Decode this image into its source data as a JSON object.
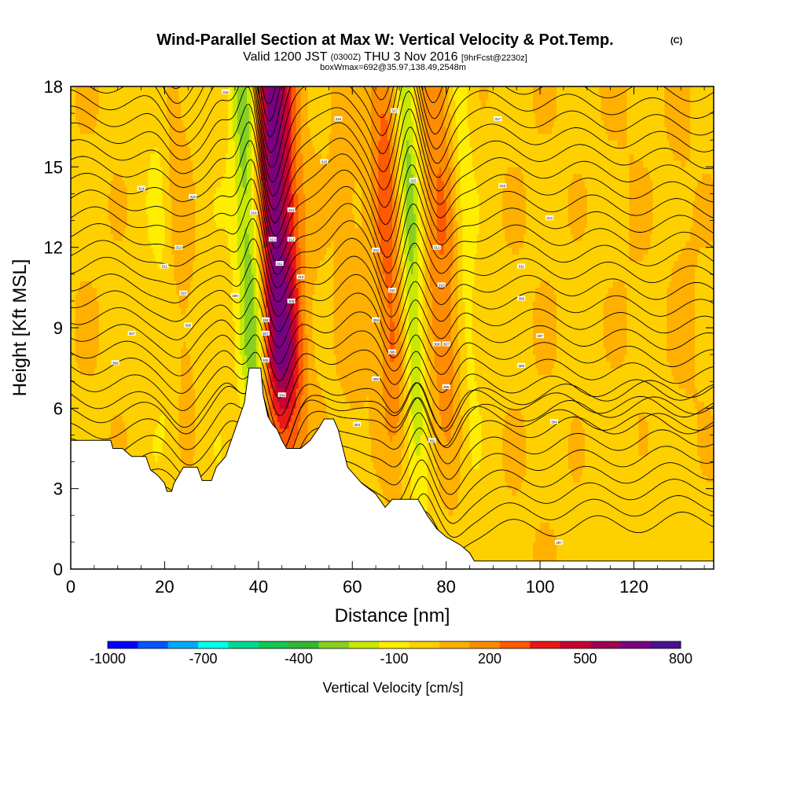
{
  "chart_data": {
    "type": "heatmap",
    "title": {
      "main": "Wind-Parallel Section at Max W: Vertical Velocity & Pot.Temp.",
      "copyright": "(C)",
      "valid_prefix": "Valid 1200 JST",
      "valid_utc": "(0300Z)",
      "valid_date": "THU 3 Nov 2016",
      "forecast": "[9hrFcst@2230z]",
      "box_info": "boxWmax=692@35.97,138.49,2548m"
    },
    "xlabel": "Distance [nm]",
    "ylabel": "Height [Kft MSL]",
    "xlim": [
      0,
      137
    ],
    "ylim": [
      0,
      18
    ],
    "x_ticks": [
      "0",
      "20",
      "40",
      "60",
      "80",
      "100",
      "120"
    ],
    "y_ticks": [
      "0",
      "3",
      "6",
      "9",
      "12",
      "15",
      "18"
    ],
    "colorbar": {
      "label": "Vertical Velocity [cm/s]",
      "tick_labels": [
        "-1000",
        "-700",
        "-400",
        "-100",
        "200",
        "500",
        "800"
      ],
      "colors": [
        "#0000ff",
        "#0055ff",
        "#00aaff",
        "#00ffee",
        "#00d890",
        "#16c850",
        "#30b830",
        "#88d020",
        "#c8e800",
        "#ffee00",
        "#ffd000",
        "#ffb000",
        "#ff8c00",
        "#ff5a00",
        "#e81818",
        "#c80030",
        "#a00050",
        "#7a0080",
        "#4a1090"
      ]
    },
    "terrain_kft": [
      [
        0,
        4.8
      ],
      [
        8.5,
        4.8
      ],
      [
        9,
        4.5
      ],
      [
        11,
        4.5
      ],
      [
        13,
        4.2
      ],
      [
        16,
        4.2
      ],
      [
        17,
        3.7
      ],
      [
        18.5,
        3.5
      ],
      [
        20,
        3.2
      ],
      [
        20.5,
        2.9
      ],
      [
        21.5,
        2.9
      ],
      [
        22,
        3.2
      ],
      [
        23,
        3.5
      ],
      [
        24,
        3.8
      ],
      [
        27,
        3.8
      ],
      [
        28,
        3.3
      ],
      [
        30,
        3.3
      ],
      [
        31,
        3.8
      ],
      [
        33,
        4.2
      ],
      [
        35,
        5.2
      ],
      [
        37,
        6.2
      ],
      [
        38,
        7.5
      ],
      [
        40.5,
        7.5
      ],
      [
        41,
        6.5
      ],
      [
        42,
        5.7
      ],
      [
        43,
        5.4
      ],
      [
        44,
        5.2
      ],
      [
        45,
        4.8
      ],
      [
        46,
        4.5
      ],
      [
        49,
        4.5
      ],
      [
        51,
        4.8
      ],
      [
        53,
        5.3
      ],
      [
        54,
        5.6
      ],
      [
        56,
        5.6
      ],
      [
        57,
        5.2
      ],
      [
        58,
        4.5
      ],
      [
        59,
        3.8
      ],
      [
        62,
        3.2
      ],
      [
        65,
        2.8
      ],
      [
        67,
        2.3
      ],
      [
        68.5,
        2.6
      ],
      [
        74,
        2.6
      ],
      [
        76,
        2.0
      ],
      [
        78,
        1.5
      ],
      [
        80,
        1.2
      ],
      [
        83,
        0.9
      ],
      [
        85,
        0.6
      ],
      [
        86,
        0.3
      ],
      [
        137,
        0.3
      ]
    ],
    "velocity_columns": [
      {
        "center_nm": 44.5,
        "half_width_nm": 4.5,
        "peak_cm_s": 692
      },
      {
        "center_nm": 68.5,
        "half_width_nm": 3.5,
        "peak_cm_s": 300
      },
      {
        "center_nm": 79.5,
        "half_width_nm": 4.5,
        "peak_cm_s": 250
      },
      {
        "center_nm": 39.0,
        "half_width_nm": 3.0,
        "peak_cm_s": -420
      },
      {
        "center_nm": 73.0,
        "half_width_nm": 2.5,
        "peak_cm_s": -330
      },
      {
        "center_nm": 84.5,
        "half_width_nm": 2.5,
        "peak_cm_s": -150
      },
      {
        "center_nm": 24.0,
        "half_width_nm": 3.5,
        "peak_cm_s": 110
      },
      {
        "center_nm": 20.0,
        "half_width_nm": 2.5,
        "peak_cm_s": -70
      },
      {
        "center_nm": 60.0,
        "half_width_nm": 3.0,
        "peak_cm_s": 80
      },
      {
        "center_nm": 120.0,
        "half_width_nm": 6.0,
        "peak_cm_s": 60
      },
      {
        "center_nm": 131.0,
        "half_width_nm": 4.0,
        "peak_cm_s": 70
      }
    ],
    "contour_labels": [
      {
        "x": 33,
        "y": 17.8,
        "text": "316"
      },
      {
        "x": 15,
        "y": 14.2,
        "text": "314"
      },
      {
        "x": 26,
        "y": 13.9,
        "text": "313"
      },
      {
        "x": 23,
        "y": 12.0,
        "text": "312"
      },
      {
        "x": 20,
        "y": 11.3,
        "text": "311"
      },
      {
        "x": 24,
        "y": 10.3,
        "text": "310"
      },
      {
        "x": 35,
        "y": 10.2,
        "text": "309"
      },
      {
        "x": 25,
        "y": 9.1,
        "text": "308"
      },
      {
        "x": 13,
        "y": 8.8,
        "text": "307"
      },
      {
        "x": 9.5,
        "y": 7.7,
        "text": "306"
      },
      {
        "x": 39,
        "y": 13.3,
        "text": "314"
      },
      {
        "x": 43,
        "y": 12.3,
        "text": "313"
      },
      {
        "x": 44.5,
        "y": 11.4,
        "text": "311"
      },
      {
        "x": 47,
        "y": 13.4,
        "text": "314"
      },
      {
        "x": 47,
        "y": 12.3,
        "text": "312"
      },
      {
        "x": 49,
        "y": 10.9,
        "text": "310"
      },
      {
        "x": 47,
        "y": 10.0,
        "text": "309"
      },
      {
        "x": 41.5,
        "y": 9.3,
        "text": "308"
      },
      {
        "x": 41.5,
        "y": 8.8,
        "text": "307"
      },
      {
        "x": 41.5,
        "y": 7.8,
        "text": "306"
      },
      {
        "x": 45,
        "y": 6.5,
        "text": "304"
      },
      {
        "x": 57,
        "y": 16.8,
        "text": "316"
      },
      {
        "x": 54,
        "y": 15.2,
        "text": "315"
      },
      {
        "x": 65,
        "y": 11.9,
        "text": "312"
      },
      {
        "x": 68.5,
        "y": 10.4,
        "text": "310"
      },
      {
        "x": 65,
        "y": 9.3,
        "text": "308"
      },
      {
        "x": 68.5,
        "y": 8.1,
        "text": "306"
      },
      {
        "x": 65,
        "y": 7.1,
        "text": "305"
      },
      {
        "x": 61,
        "y": 5.4,
        "text": "303"
      },
      {
        "x": 69,
        "y": 17.1,
        "text": "317"
      },
      {
        "x": 73,
        "y": 14.5,
        "text": "315"
      },
      {
        "x": 78,
        "y": 12.0,
        "text": "312"
      },
      {
        "x": 79,
        "y": 10.6,
        "text": "310"
      },
      {
        "x": 78,
        "y": 8.4,
        "text": "308"
      },
      {
        "x": 80,
        "y": 8.4,
        "text": "307"
      },
      {
        "x": 80,
        "y": 6.8,
        "text": "305"
      },
      {
        "x": 77,
        "y": 4.8,
        "text": "302"
      },
      {
        "x": 91,
        "y": 16.8,
        "text": "317"
      },
      {
        "x": 92,
        "y": 14.3,
        "text": "315"
      },
      {
        "x": 102,
        "y": 13.1,
        "text": "313"
      },
      {
        "x": 96,
        "y": 11.3,
        "text": "311"
      },
      {
        "x": 96,
        "y": 10.1,
        "text": "309"
      },
      {
        "x": 100,
        "y": 8.7,
        "text": "307"
      },
      {
        "x": 96,
        "y": 7.6,
        "text": "305"
      },
      {
        "x": 103,
        "y": 5.5,
        "text": "304"
      },
      {
        "x": 104,
        "y": 1.0,
        "text": "297"
      }
    ]
  }
}
